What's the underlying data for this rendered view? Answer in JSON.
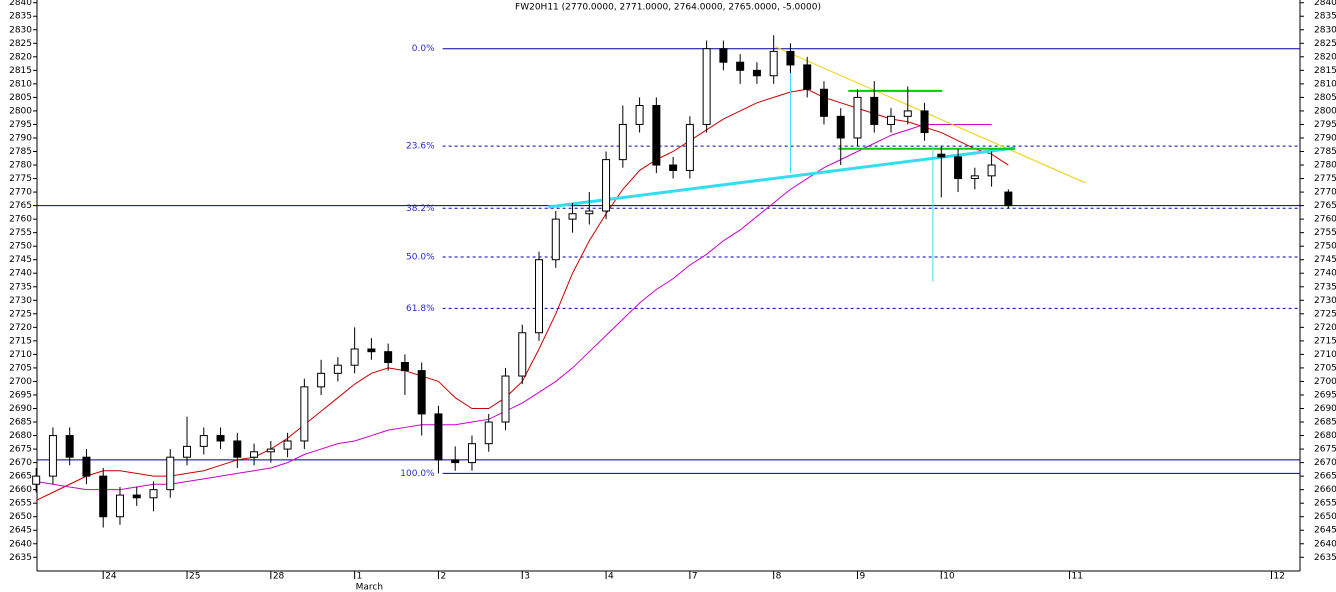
{
  "chart_data": {
    "type": "candlestick",
    "title": "FW20H11 (2770.0000, 2771.0000, 2764.0000, 2765.0000, -5.0000)",
    "x": [
      0.2,
      0.4,
      0.6,
      0.8,
      1.0,
      1.2,
      1.4,
      1.6,
      1.8,
      2.0,
      2.2,
      2.4,
      2.6,
      2.8,
      3.0,
      3.2,
      3.4,
      3.6,
      3.8,
      4.0,
      4.2,
      4.4,
      4.6,
      4.8,
      5.0,
      5.2,
      5.4,
      5.6,
      5.8,
      6.0,
      6.2,
      6.4,
      6.6,
      6.8,
      7.0,
      7.2,
      7.4,
      7.6,
      7.8,
      8.0,
      8.2,
      8.4,
      8.6,
      8.8,
      9.0,
      9.2,
      9.4,
      9.6,
      9.8,
      10.0,
      10.2,
      10.4,
      10.6,
      10.8,
      11.0,
      11.2,
      11.4,
      11.6,
      11.8
    ],
    "open": [
      2662,
      2665,
      2680,
      2672,
      2665,
      2650,
      2658,
      2657,
      2660,
      2672,
      2676,
      2680,
      2678,
      2672,
      2674,
      2675,
      2678,
      2698,
      2703,
      2706,
      2712,
      2711,
      2707,
      2704,
      2688,
      2671,
      2670,
      2677,
      2685,
      2702,
      2718,
      2745,
      2760,
      2762,
      2763,
      2782,
      2795,
      2802,
      2780,
      2778,
      2795,
      2823,
      2818,
      2815,
      2813,
      2822,
      2817,
      2808,
      2798,
      2790,
      2805,
      2795,
      2798,
      2800,
      2784,
      2783,
      2775,
      2776,
      2770
    ],
    "high": [
      2668,
      2683,
      2683,
      2675,
      2668,
      2661,
      2661,
      2663,
      2675,
      2687,
      2683,
      2683,
      2681,
      2677,
      2678,
      2681,
      2701,
      2708,
      2709,
      2720,
      2716,
      2714,
      2710,
      2707,
      2691,
      2676,
      2680,
      2688,
      2705,
      2721,
      2748,
      2763,
      2766,
      2770,
      2785,
      2802,
      2805,
      2805,
      2783,
      2798,
      2826,
      2826,
      2821,
      2818,
      2828,
      2825,
      2820,
      2811,
      2801,
      2808,
      2811,
      2801,
      2809,
      2803,
      2787,
      2786,
      2779,
      2785,
      2771
    ],
    "low": [
      2659,
      2662,
      2669,
      2662,
      2646,
      2647,
      2654,
      2652,
      2657,
      2669,
      2673,
      2675,
      2668,
      2669,
      2670,
      2672,
      2675,
      2695,
      2700,
      2703,
      2708,
      2704,
      2695,
      2680,
      2666,
      2667,
      2667,
      2674,
      2682,
      2699,
      2715,
      2742,
      2755,
      2758,
      2760,
      2779,
      2792,
      2777,
      2775,
      2775,
      2792,
      2815,
      2810,
      2810,
      2810,
      2814,
      2805,
      2795,
      2780,
      2787,
      2792,
      2792,
      2795,
      2789,
      2768,
      2770,
      2771,
      2772,
      2764
    ],
    "close": [
      2665,
      2680,
      2672,
      2665,
      2650,
      2658,
      2657,
      2660,
      2672,
      2676,
      2680,
      2678,
      2672,
      2674,
      2675,
      2678,
      2698,
      2703,
      2706,
      2712,
      2711,
      2707,
      2704,
      2688,
      2671,
      2670,
      2677,
      2685,
      2702,
      2718,
      2745,
      2760,
      2762,
      2763,
      2782,
      2795,
      2802,
      2780,
      2778,
      2795,
      2823,
      2818,
      2815,
      2813,
      2822,
      2817,
      2808,
      2798,
      2790,
      2805,
      2795,
      2798,
      2800,
      2792,
      2783,
      2775,
      2776,
      2780,
      2765
    ],
    "series": [
      {
        "color": "#cc0000",
        "values": [
          2656,
          2659,
          2662,
          2665,
          2667,
          2667,
          2666,
          2665,
          2665,
          2666,
          2667,
          2669,
          2671,
          2672,
          2675,
          2679,
          2684,
          2689,
          2694,
          2699,
          2703,
          2705,
          2704,
          2702,
          2700,
          2694,
          2690,
          2690,
          2694,
          2700,
          2712,
          2725,
          2740,
          2752,
          2762,
          2771,
          2778,
          2782,
          2785,
          2789,
          2793,
          2797,
          2800,
          2803,
          2805,
          2807,
          2808,
          2805,
          2803,
          2801,
          2799,
          2797,
          2796,
          2794,
          2792,
          2789,
          2786,
          2784,
          2780
        ]
      },
      {
        "color": "#cc00cc",
        "values": [
          2663,
          2662,
          2661,
          2660,
          2660,
          2660,
          2661,
          2662,
          2662,
          2663,
          2664,
          2665,
          2666,
          2667,
          2668,
          2670,
          2673,
          2675,
          2677,
          2678,
          2680,
          2682,
          2683,
          2684,
          2684,
          2684,
          2685,
          2686,
          2689,
          2692,
          2696,
          2700,
          2705,
          2711,
          2717,
          2723,
          2729,
          2734,
          2738,
          2743,
          2747,
          2752,
          2756,
          2761,
          2766,
          2771,
          2775,
          2779,
          2782,
          2785,
          2788,
          2791,
          2793,
          2795,
          2795,
          2795,
          2795,
          2795,
          null
        ]
      }
    ],
    "xlim": [
      0.21,
      15.28
    ],
    "ylim": [
      2634,
      2841
    ],
    "yticks": [
      2635,
      2640,
      2645,
      2650,
      2655,
      2660,
      2665,
      2670,
      2675,
      2680,
      2685,
      2690,
      2695,
      2700,
      2705,
      2710,
      2715,
      2720,
      2725,
      2730,
      2735,
      2740,
      2745,
      2750,
      2755,
      2760,
      2765,
      2770,
      2775,
      2780,
      2785,
      2790,
      2795,
      2800,
      2805,
      2810,
      2815,
      2820,
      2825,
      2830,
      2835,
      2840
    ],
    "xticks": [
      {
        "value": 1,
        "label": "24"
      },
      {
        "value": 2,
        "label": "25"
      },
      {
        "value": 3,
        "label": "28"
      },
      {
        "value": 4,
        "label": "1"
      },
      {
        "value": 5,
        "label": "2"
      },
      {
        "value": 6,
        "label": "3"
      },
      {
        "value": 7,
        "label": "4"
      },
      {
        "value": 8,
        "label": "7"
      },
      {
        "value": 9,
        "label": "8"
      },
      {
        "value": 10,
        "label": "9"
      },
      {
        "value": 11,
        "label": "10"
      },
      {
        "value": 12.53,
        "label": "11"
      },
      {
        "value": 14.94,
        "label": "12"
      }
    ],
    "x_group_label": {
      "value": 4,
      "label": "March"
    },
    "hlines": [
      {
        "value": 2765,
        "color": "#000080"
      },
      {
        "value": 2671,
        "color": "#000080"
      }
    ],
    "fib": {
      "start": 5.05,
      "color": "#0000aa",
      "levels": [
        {
          "label": "0.0%",
          "value": 2823,
          "dashed": false
        },
        {
          "label": "23.6%",
          "value": 2787,
          "dashed": true
        },
        {
          "label": "38.2%",
          "value": 2764,
          "dashed": true
        },
        {
          "label": "50.0%",
          "value": 2746,
          "dashed": true
        },
        {
          "label": "61.8%",
          "value": 2727,
          "dashed": true
        },
        {
          "label": "100.0%",
          "value": 2666,
          "dashed": false
        }
      ]
    },
    "drawings": [
      {
        "color": "#f0d000",
        "width": 1,
        "x": [
          9.02,
          12.72
        ],
        "y": [
          2823.7,
          2773.4
        ]
      },
      {
        "color": "#33ddee",
        "width": 3,
        "x": [
          6.31,
          11.88
        ],
        "y": [
          2764.5,
          2786.3
        ]
      },
      {
        "color": "#00cc00",
        "width": 2,
        "x": [
          9.89,
          11.01
        ],
        "y": [
          2807.4,
          2807.4
        ]
      },
      {
        "color": "#00cc00",
        "width": 2,
        "x": [
          9.77,
          11.88
        ],
        "y": [
          2786,
          2786
        ]
      },
      {
        "color": "#33ddee",
        "width": 1,
        "x": [
          9.2,
          9.2
        ],
        "y": [
          2823,
          2777
        ]
      },
      {
        "color": "#33ddee",
        "width": 1,
        "x": [
          10.9,
          10.9
        ],
        "y": [
          2787,
          2737
        ]
      }
    ]
  }
}
